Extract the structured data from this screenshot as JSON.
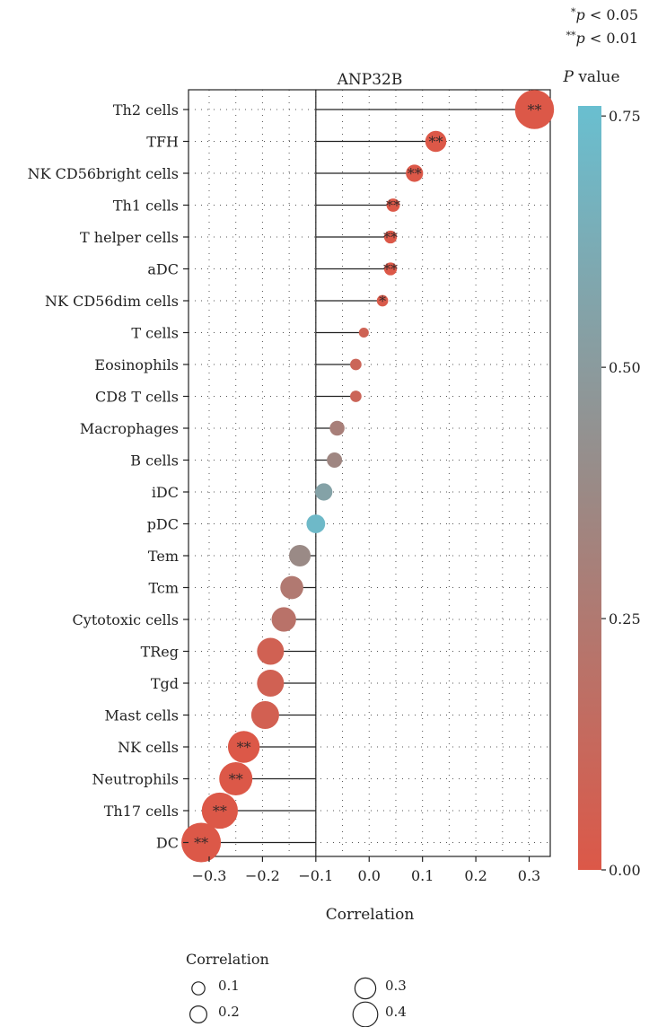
{
  "chart_data": {
    "type": "scatter",
    "title": "ANP32B",
    "xlabel": "Correlation",
    "ylabel": "",
    "xlim": [
      -0.34,
      0.34
    ],
    "xticks": [
      -0.3,
      -0.2,
      -0.1,
      0.0,
      0.1,
      0.2,
      0.3
    ],
    "xtick_labels": [
      "−0.3",
      "−0.2",
      "−0.1",
      "0.0",
      "0.1",
      "0.2",
      "0.3"
    ],
    "baseline": -0.1,
    "grid": true,
    "categories": [
      "Th2 cells",
      "TFH",
      "NK CD56bright cells",
      "Th1 cells",
      "T helper cells",
      "aDC",
      "NK CD56dim cells",
      "T cells",
      "Eosinophils",
      "CD8 T cells",
      "Macrophages",
      "B cells",
      "iDC",
      "pDC",
      "Tem",
      "Tcm",
      "Cytotoxic cells",
      "TReg",
      "Tgd",
      "Mast cells",
      "NK cells",
      "Neutrophils",
      "Th17 cells",
      "DC"
    ],
    "correlation": [
      0.31,
      0.125,
      0.085,
      0.045,
      0.04,
      0.04,
      0.025,
      -0.01,
      -0.025,
      -0.025,
      -0.06,
      -0.065,
      -0.085,
      -0.1,
      -0.13,
      -0.145,
      -0.16,
      -0.185,
      -0.185,
      -0.195,
      -0.235,
      -0.25,
      -0.28,
      -0.315
    ],
    "p_value": [
      0.0,
      0.0,
      0.0,
      0.0,
      0.0,
      0.0,
      0.02,
      0.08,
      0.1,
      0.1,
      0.3,
      0.35,
      0.55,
      0.72,
      0.38,
      0.25,
      0.2,
      0.07,
      0.07,
      0.06,
      0.0,
      0.0,
      0.0,
      0.0
    ],
    "significance": [
      "**",
      "**",
      "**",
      "**",
      "**",
      "**",
      "*",
      "",
      "",
      "",
      "",
      "",
      "",
      "",
      "",
      "",
      "",
      "",
      "",
      "",
      "**",
      "**",
      "**",
      "**"
    ],
    "significance_legend": [
      {
        "mark": "*",
        "text": "p < 0.05"
      },
      {
        "mark": "**",
        "text": "p < 0.01"
      }
    ],
    "color_legend": {
      "title": "P value",
      "min": 0.0,
      "max": 0.76,
      "ticks": [
        0.75,
        0.5,
        0.25,
        0.0
      ],
      "tick_labels": [
        "0.75",
        "0.50",
        "0.25",
        "0.00"
      ],
      "color_low": "#dc5848",
      "color_mid": "#9a8a86",
      "color_high": "#69bfd0"
    },
    "size_legend": {
      "title": "Correlation",
      "entries": [
        0.1,
        0.3,
        0.2,
        0.4
      ],
      "labels": [
        "0.1",
        "0.3",
        "0.2",
        "0.4"
      ]
    }
  }
}
